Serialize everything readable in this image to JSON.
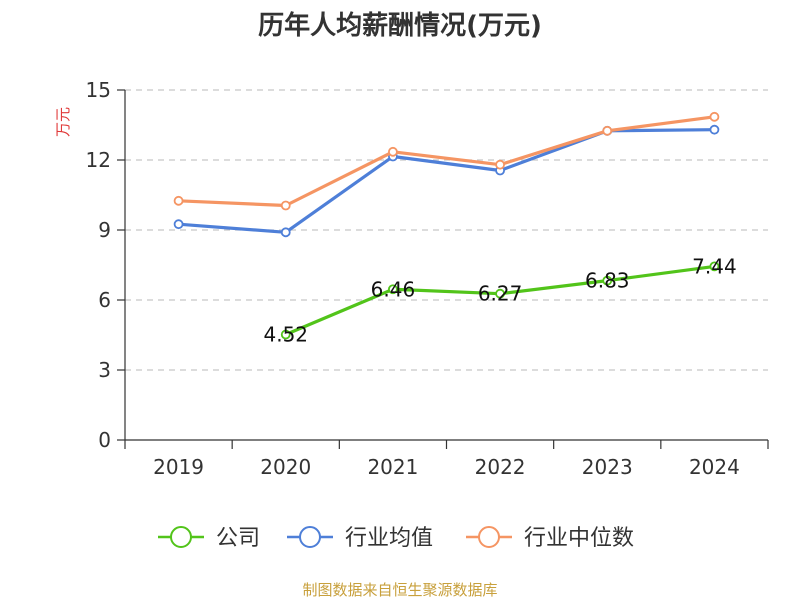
{
  "chart_data": {
    "type": "line",
    "title": "历年人均薪酬情况(万元)",
    "ylabel": "万元",
    "xlabel": "",
    "categories": [
      "2019",
      "2020",
      "2021",
      "2022",
      "2023",
      "2024"
    ],
    "ylim": [
      0,
      15
    ],
    "yticks": [
      0,
      3,
      6,
      9,
      12,
      15
    ],
    "grid": true,
    "legend_position": "bottom",
    "series": [
      {
        "name": "公司",
        "color": "#52c41a",
        "values": [
          null,
          4.52,
          6.46,
          6.27,
          6.83,
          7.44
        ],
        "labels": [
          "",
          "4.52",
          "6.46",
          "6.27",
          "6.83",
          "7.44"
        ]
      },
      {
        "name": "行业均值",
        "color": "#4e7fd8",
        "values": [
          9.25,
          8.9,
          12.15,
          11.55,
          13.25,
          13.3
        ]
      },
      {
        "name": "行业中位数",
        "color": "#f59563",
        "values": [
          10.25,
          10.05,
          12.35,
          11.8,
          13.25,
          13.85
        ]
      }
    ],
    "source": "制图数据来自恒生聚源数据库"
  }
}
